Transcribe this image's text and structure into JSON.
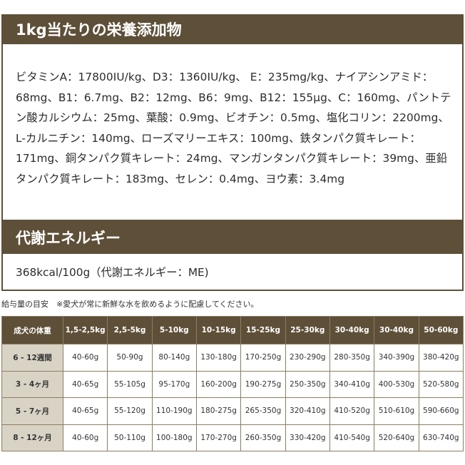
{
  "nutrition": {
    "title": "1kg当たりの栄養添加物",
    "text": "ビタミンA：17800IU/kg、D3：1360IU/kg、 E：235mg/kg、ナイアシンアミド：68mg、B1：6.7mg、B2：12mg、B6：9mg、B12：155μg、C：160mg、パントテン酸カルシウム：25mg、葉酸：0.9mg、ビオチン：0.5mg、塩化コリン：2200mg、L-カルニチン：140mg、ローズマリーエキス：100mg、鉄タンパク質キレート：171mg、銅タンパク質キレート：24mg、マンガンタンパク質キレート：39mg、亜鉛タンパク質キレート：183mg、セレン：0.4mg、ヨウ素：3.4mg"
  },
  "energy": {
    "title": "代謝エネルギー",
    "value": "368kcal/100g（代謝エネルギー：ME)"
  },
  "feeding": {
    "note": "給与量の目安　※愛犬が常に新鮮な水を飲めるように配慮してください。",
    "header": [
      "成犬の体重",
      "1,5-2,5kg",
      "2,5-5kg",
      "5-10kg",
      "10-15kg",
      "15-25kg",
      "25-30kg",
      "30-40kg",
      "30-40kg",
      "50-60kg"
    ],
    "rows": [
      {
        "label": "6 - 12週間",
        "cells": [
          "40-60g",
          "50-90g",
          "80-140g",
          "130-180g",
          "170-250g",
          "230-290g",
          "280-350g",
          "340-390g",
          "380-420g"
        ]
      },
      {
        "label": "3 - 4ヶ月",
        "cells": [
          "40-65g",
          "55-105g",
          "95-170g",
          "160-200g",
          "190-275g",
          "250-350g",
          "340-410g",
          "400-530g",
          "520-580g"
        ]
      },
      {
        "label": "5 - 7ヶ月",
        "cells": [
          "40-65g",
          "55-120g",
          "110-190g",
          "180-275g",
          "265-350g",
          "320-410g",
          "410-520g",
          "510-610g",
          "590-660g"
        ]
      },
      {
        "label": "8 - 12ヶ月",
        "cells": [
          "40-60g",
          "50-110g",
          "100-180g",
          "170-270g",
          "260-350g",
          "330-420g",
          "410-540g",
          "520-640g",
          "630-740g"
        ]
      }
    ]
  },
  "colors": {
    "header_brown": "#5e4f38",
    "row_label_beige": "#d9d3c5",
    "border": "#8c7d63"
  }
}
